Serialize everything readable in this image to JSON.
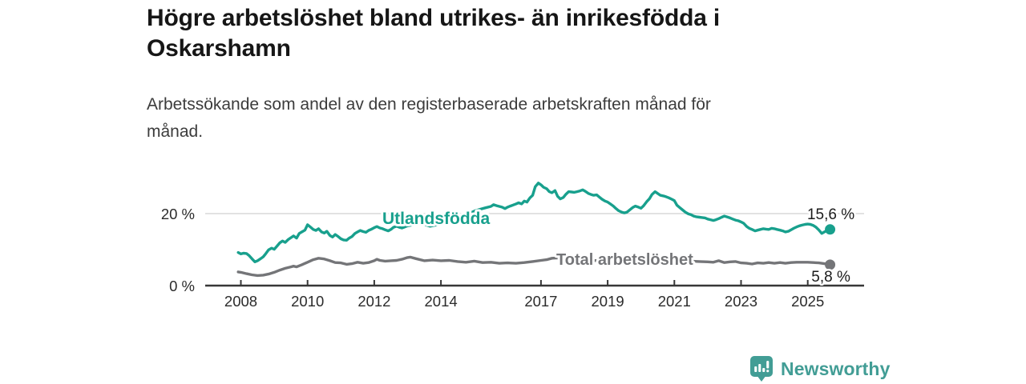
{
  "title": {
    "line1": "Högre arbetslöshet bland utrikes- än inrikesfödda i",
    "line2": "Oskarshamn"
  },
  "subtitle": {
    "line1": "Arbetssökande som andel av den registerbaserade arbetskraften månad för",
    "line2": "månad."
  },
  "branding": {
    "name": "Newsworthy",
    "color": "#429d95"
  },
  "colors": {
    "foreign_born_line": "#18a08d",
    "total_line": "#747578",
    "grid": "#d9d9d9",
    "axis": "#373737",
    "tick_label": "#2b2b2b",
    "value_label": "#1b1b1b"
  },
  "chart_data": {
    "type": "line",
    "title": "Högre arbetslöshet bland utrikes- än inrikesfödda i Oskarshamn",
    "subtitle": "Arbetssökande som andel av den registerbaserade arbetskraften månad för månad.",
    "xlabel": "",
    "ylabel": "",
    "x_ticks": [
      2008,
      2010,
      2012,
      2014,
      2017,
      2019,
      2021,
      2023,
      2025
    ],
    "y_ticks": [
      {
        "value": 0,
        "label": "0 %"
      },
      {
        "value": 20,
        "label": "20 %"
      }
    ],
    "y_range": [
      0,
      30
    ],
    "x_range": [
      2007.9,
      2025.75
    ],
    "grid": "horizontal-only",
    "legend_position": "inline-labels",
    "series": [
      {
        "name": "Utlandsfödda",
        "color": "#18a08d",
        "end_value": 15.6,
        "end_label": "15,6 %",
        "points": [
          [
            2007.92,
            9.2
          ],
          [
            2008.0,
            8.8
          ],
          [
            2008.08,
            9.0
          ],
          [
            2008.17,
            8.9
          ],
          [
            2008.25,
            8.3
          ],
          [
            2008.33,
            7.5
          ],
          [
            2008.42,
            6.6
          ],
          [
            2008.5,
            6.9
          ],
          [
            2008.58,
            7.4
          ],
          [
            2008.67,
            8.0
          ],
          [
            2008.75,
            8.9
          ],
          [
            2008.83,
            9.9
          ],
          [
            2008.92,
            10.4
          ],
          [
            2009.0,
            10.1
          ],
          [
            2009.08,
            10.9
          ],
          [
            2009.17,
            11.9
          ],
          [
            2009.25,
            12.4
          ],
          [
            2009.33,
            12.0
          ],
          [
            2009.42,
            12.8
          ],
          [
            2009.5,
            13.3
          ],
          [
            2009.58,
            13.8
          ],
          [
            2009.67,
            13.2
          ],
          [
            2009.75,
            14.5
          ],
          [
            2009.83,
            14.9
          ],
          [
            2009.92,
            15.4
          ],
          [
            2010.0,
            16.9
          ],
          [
            2010.08,
            16.3
          ],
          [
            2010.17,
            15.6
          ],
          [
            2010.25,
            15.3
          ],
          [
            2010.33,
            15.8
          ],
          [
            2010.42,
            14.9
          ],
          [
            2010.5,
            14.6
          ],
          [
            2010.58,
            15.1
          ],
          [
            2010.67,
            13.9
          ],
          [
            2010.75,
            13.5
          ],
          [
            2010.83,
            14.2
          ],
          [
            2010.92,
            13.6
          ],
          [
            2011.0,
            13.0
          ],
          [
            2011.08,
            12.7
          ],
          [
            2011.17,
            12.6
          ],
          [
            2011.25,
            13.2
          ],
          [
            2011.33,
            13.6
          ],
          [
            2011.42,
            14.5
          ],
          [
            2011.5,
            14.9
          ],
          [
            2011.58,
            15.3
          ],
          [
            2011.67,
            15.0
          ],
          [
            2011.75,
            14.8
          ],
          [
            2011.83,
            15.3
          ],
          [
            2011.92,
            15.7
          ],
          [
            2012.0,
            16.1
          ],
          [
            2012.08,
            16.4
          ],
          [
            2012.17,
            16.0
          ],
          [
            2012.25,
            15.8
          ],
          [
            2012.33,
            15.5
          ],
          [
            2012.42,
            15.2
          ],
          [
            2012.5,
            15.6
          ],
          [
            2012.58,
            16.2
          ],
          [
            2012.67,
            16.5
          ],
          [
            2012.75,
            16.2
          ],
          [
            2012.83,
            16.0
          ],
          [
            2012.92,
            16.3
          ],
          [
            2013.0,
            16.6
          ],
          [
            2013.17,
            16.9
          ],
          [
            2013.33,
            17.2
          ],
          [
            2013.5,
            17.0
          ],
          [
            2013.67,
            16.5
          ],
          [
            2013.83,
            16.8
          ],
          [
            2014.0,
            17.1
          ],
          [
            2014.17,
            17.5
          ],
          [
            2014.33,
            17.9
          ],
          [
            2014.5,
            18.4
          ],
          [
            2014.67,
            19.1
          ],
          [
            2014.83,
            20.0
          ],
          [
            2015.0,
            20.7
          ],
          [
            2015.17,
            21.2
          ],
          [
            2015.33,
            21.6
          ],
          [
            2015.5,
            22.0
          ],
          [
            2015.58,
            22.5
          ],
          [
            2015.67,
            22.2
          ],
          [
            2015.83,
            21.8
          ],
          [
            2015.92,
            21.4
          ],
          [
            2016.0,
            21.8
          ],
          [
            2016.08,
            22.1
          ],
          [
            2016.17,
            22.4
          ],
          [
            2016.25,
            22.7
          ],
          [
            2016.33,
            23.0
          ],
          [
            2016.42,
            22.7
          ],
          [
            2016.5,
            23.5
          ],
          [
            2016.58,
            23.2
          ],
          [
            2016.67,
            24.4
          ],
          [
            2016.75,
            25.1
          ],
          [
            2016.83,
            27.5
          ],
          [
            2016.92,
            28.5
          ],
          [
            2017.0,
            28.0
          ],
          [
            2017.08,
            27.3
          ],
          [
            2017.17,
            26.9
          ],
          [
            2017.25,
            26.1
          ],
          [
            2017.33,
            25.8
          ],
          [
            2017.42,
            26.4
          ],
          [
            2017.5,
            24.8
          ],
          [
            2017.58,
            24.1
          ],
          [
            2017.67,
            24.5
          ],
          [
            2017.75,
            25.4
          ],
          [
            2017.83,
            26.1
          ],
          [
            2017.92,
            26.0
          ],
          [
            2018.0,
            25.9
          ],
          [
            2018.08,
            26.1
          ],
          [
            2018.17,
            26.3
          ],
          [
            2018.25,
            26.6
          ],
          [
            2018.33,
            26.2
          ],
          [
            2018.42,
            25.6
          ],
          [
            2018.5,
            25.3
          ],
          [
            2018.58,
            25.1
          ],
          [
            2018.67,
            25.2
          ],
          [
            2018.75,
            24.6
          ],
          [
            2018.83,
            24.0
          ],
          [
            2018.92,
            23.5
          ],
          [
            2019.0,
            23.2
          ],
          [
            2019.08,
            22.7
          ],
          [
            2019.17,
            22.1
          ],
          [
            2019.25,
            21.4
          ],
          [
            2019.33,
            20.8
          ],
          [
            2019.42,
            20.4
          ],
          [
            2019.5,
            20.2
          ],
          [
            2019.58,
            20.4
          ],
          [
            2019.67,
            21.1
          ],
          [
            2019.75,
            21.7
          ],
          [
            2019.83,
            22.1
          ],
          [
            2019.92,
            21.8
          ],
          [
            2020.0,
            21.5
          ],
          [
            2020.08,
            22.2
          ],
          [
            2020.17,
            23.3
          ],
          [
            2020.25,
            24.1
          ],
          [
            2020.33,
            25.3
          ],
          [
            2020.42,
            26.1
          ],
          [
            2020.5,
            25.6
          ],
          [
            2020.58,
            25.1
          ],
          [
            2020.67,
            24.9
          ],
          [
            2020.75,
            24.7
          ],
          [
            2020.83,
            24.4
          ],
          [
            2020.92,
            24.0
          ],
          [
            2021.0,
            23.6
          ],
          [
            2021.08,
            22.3
          ],
          [
            2021.17,
            21.6
          ],
          [
            2021.25,
            21.0
          ],
          [
            2021.33,
            20.4
          ],
          [
            2021.42,
            19.9
          ],
          [
            2021.5,
            19.7
          ],
          [
            2021.58,
            19.3
          ],
          [
            2021.67,
            19.1
          ],
          [
            2021.75,
            19.0
          ],
          [
            2021.83,
            18.9
          ],
          [
            2021.92,
            18.8
          ],
          [
            2022.0,
            18.5
          ],
          [
            2022.08,
            18.3
          ],
          [
            2022.17,
            18.1
          ],
          [
            2022.25,
            18.3
          ],
          [
            2022.33,
            18.6
          ],
          [
            2022.42,
            19.0
          ],
          [
            2022.5,
            19.3
          ],
          [
            2022.58,
            19.1
          ],
          [
            2022.67,
            18.8
          ],
          [
            2022.75,
            18.5
          ],
          [
            2022.83,
            18.2
          ],
          [
            2022.92,
            18.0
          ],
          [
            2023.0,
            17.7
          ],
          [
            2023.08,
            17.3
          ],
          [
            2023.17,
            16.4
          ],
          [
            2023.25,
            15.9
          ],
          [
            2023.33,
            15.6
          ],
          [
            2023.42,
            15.2
          ],
          [
            2023.5,
            15.4
          ],
          [
            2023.58,
            15.6
          ],
          [
            2023.67,
            15.8
          ],
          [
            2023.75,
            15.7
          ],
          [
            2023.83,
            15.6
          ],
          [
            2023.92,
            15.9
          ],
          [
            2024.0,
            15.8
          ],
          [
            2024.08,
            15.6
          ],
          [
            2024.17,
            15.4
          ],
          [
            2024.25,
            15.2
          ],
          [
            2024.33,
            14.9
          ],
          [
            2024.42,
            15.1
          ],
          [
            2024.5,
            15.5
          ],
          [
            2024.58,
            15.9
          ],
          [
            2024.67,
            16.3
          ],
          [
            2024.75,
            16.6
          ],
          [
            2024.83,
            16.8
          ],
          [
            2024.92,
            17.0
          ],
          [
            2025.0,
            17.1
          ],
          [
            2025.08,
            17.0
          ],
          [
            2025.17,
            16.7
          ],
          [
            2025.25,
            16.2
          ],
          [
            2025.33,
            15.5
          ],
          [
            2025.42,
            14.5
          ],
          [
            2025.5,
            14.9
          ],
          [
            2025.58,
            15.3
          ],
          [
            2025.67,
            15.6
          ]
        ]
      },
      {
        "name": "Total arbetslöshet",
        "color": "#747578",
        "end_value": 5.8,
        "end_label": "5,8 %",
        "points": [
          [
            2007.92,
            3.8
          ],
          [
            2008.0,
            3.7
          ],
          [
            2008.17,
            3.3
          ],
          [
            2008.33,
            3.0
          ],
          [
            2008.5,
            2.8
          ],
          [
            2008.67,
            2.9
          ],
          [
            2008.83,
            3.2
          ],
          [
            2009.0,
            3.7
          ],
          [
            2009.17,
            4.3
          ],
          [
            2009.33,
            4.8
          ],
          [
            2009.5,
            5.2
          ],
          [
            2009.58,
            5.4
          ],
          [
            2009.67,
            5.2
          ],
          [
            2009.83,
            5.8
          ],
          [
            2010.0,
            6.5
          ],
          [
            2010.17,
            7.2
          ],
          [
            2010.33,
            7.6
          ],
          [
            2010.5,
            7.4
          ],
          [
            2010.67,
            6.9
          ],
          [
            2010.83,
            6.4
          ],
          [
            2011.0,
            6.3
          ],
          [
            2011.17,
            5.9
          ],
          [
            2011.33,
            6.1
          ],
          [
            2011.5,
            6.5
          ],
          [
            2011.67,
            6.2
          ],
          [
            2011.83,
            6.4
          ],
          [
            2012.0,
            6.9
          ],
          [
            2012.08,
            7.3
          ],
          [
            2012.17,
            7.0
          ],
          [
            2012.33,
            6.8
          ],
          [
            2012.5,
            6.9
          ],
          [
            2012.67,
            7.0
          ],
          [
            2012.83,
            7.3
          ],
          [
            2013.0,
            7.8
          ],
          [
            2013.08,
            7.9
          ],
          [
            2013.25,
            7.5
          ],
          [
            2013.5,
            6.9
          ],
          [
            2013.75,
            7.1
          ],
          [
            2014.0,
            6.9
          ],
          [
            2014.25,
            7.0
          ],
          [
            2014.5,
            6.7
          ],
          [
            2014.75,
            6.5
          ],
          [
            2015.0,
            6.8
          ],
          [
            2015.25,
            6.4
          ],
          [
            2015.5,
            6.5
          ],
          [
            2015.75,
            6.2
          ],
          [
            2016.0,
            6.3
          ],
          [
            2016.25,
            6.2
          ],
          [
            2016.5,
            6.4
          ],
          [
            2016.75,
            6.7
          ],
          [
            2017.0,
            7.0
          ],
          [
            2017.17,
            7.2
          ],
          [
            2017.33,
            7.6
          ],
          [
            2017.5,
            7.7
          ],
          [
            2017.67,
            7.4
          ],
          [
            2017.83,
            7.3
          ],
          [
            2018.0,
            7.2
          ],
          [
            2018.25,
            7.3
          ],
          [
            2018.5,
            7.0
          ],
          [
            2018.75,
            6.9
          ],
          [
            2019.0,
            6.8
          ],
          [
            2019.25,
            6.7
          ],
          [
            2019.5,
            6.6
          ],
          [
            2019.75,
            6.7
          ],
          [
            2020.0,
            6.9
          ],
          [
            2020.25,
            7.3
          ],
          [
            2020.42,
            7.6
          ],
          [
            2020.58,
            7.5
          ],
          [
            2020.83,
            7.2
          ],
          [
            2021.0,
            7.1
          ],
          [
            2021.25,
            7.0
          ],
          [
            2021.5,
            6.8
          ],
          [
            2021.75,
            6.7
          ],
          [
            2022.0,
            6.6
          ],
          [
            2022.17,
            6.5
          ],
          [
            2022.33,
            6.9
          ],
          [
            2022.5,
            6.4
          ],
          [
            2022.67,
            6.6
          ],
          [
            2022.83,
            6.7
          ],
          [
            2023.0,
            6.3
          ],
          [
            2023.17,
            6.2
          ],
          [
            2023.33,
            6.0
          ],
          [
            2023.5,
            6.3
          ],
          [
            2023.67,
            6.2
          ],
          [
            2023.83,
            6.4
          ],
          [
            2024.0,
            6.2
          ],
          [
            2024.17,
            6.4
          ],
          [
            2024.33,
            6.2
          ],
          [
            2024.5,
            6.4
          ],
          [
            2024.67,
            6.5
          ],
          [
            2024.83,
            6.5
          ],
          [
            2025.0,
            6.5
          ],
          [
            2025.17,
            6.4
          ],
          [
            2025.33,
            6.3
          ],
          [
            2025.5,
            6.1
          ],
          [
            2025.67,
            5.8
          ]
        ]
      }
    ]
  }
}
